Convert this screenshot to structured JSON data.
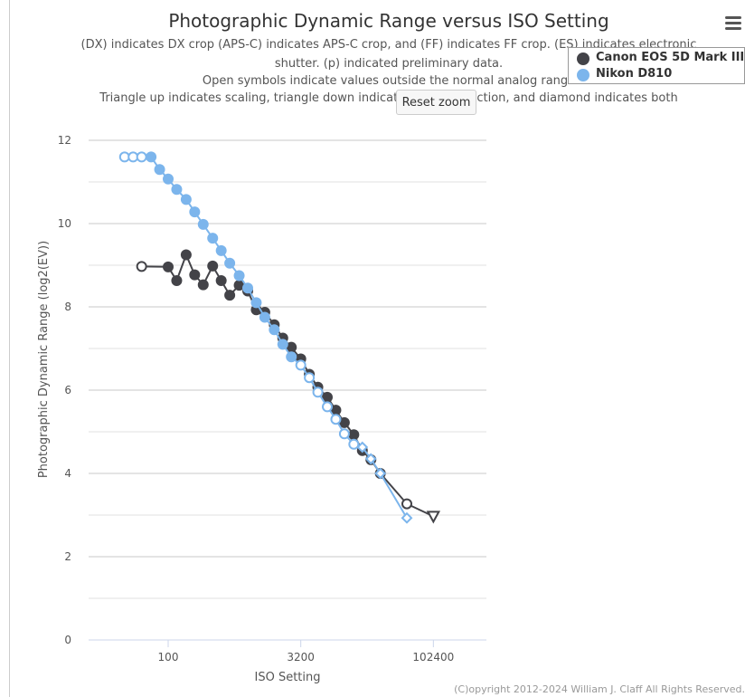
{
  "header": {
    "title": "Photographic Dynamic Range versus ISO Setting",
    "subtitle_lines": [
      "(DX) indicates DX crop (APS-C) indicates APS-C crop, and (FF) indicates FF crop. (ES) indicates electronic",
      "shutter. (p) indicated preliminary data.",
      "Open symbols indicate values outside the normal analog range",
      "Triangle up indicates scaling, triangle down indicates noise reduction, and diamond indicates both"
    ]
  },
  "controls": {
    "reset_zoom_label": "Reset zoom",
    "menu_icon": "hamburger-menu-icon"
  },
  "legend": {
    "items": [
      {
        "label": "Canon EOS 5D Mark III",
        "color": "#434348"
      },
      {
        "label": "Nikon D810",
        "color": "#7cb5ec"
      }
    ]
  },
  "credits": "(C)opyright 2012-2024 William J. Claff All Rights Reserved.",
  "chart_data": {
    "type": "scatter",
    "title": "Photographic Dynamic Range versus ISO Setting",
    "xlabel": "ISO Setting",
    "ylabel": "Photographic Dynamic Range (log2(EV))",
    "x_scale": "log2",
    "xlim": [
      12.5,
      409600
    ],
    "ylim": [
      0,
      12
    ],
    "x_ticks": [
      100,
      3200,
      102400
    ],
    "x_tick_labels": [
      "100",
      "3200",
      "102400"
    ],
    "y_ticks": [
      0,
      2,
      4,
      6,
      8,
      10,
      12
    ],
    "grid": true,
    "legend_position": "top-right",
    "series": [
      {
        "name": "Canon EOS 5D Mark III",
        "color": "#434348",
        "points": [
          {
            "x": 50,
            "y": 8.97,
            "marker": "circle-open"
          },
          {
            "x": 100,
            "y": 8.96,
            "marker": "circle"
          },
          {
            "x": 125,
            "y": 8.63,
            "marker": "circle"
          },
          {
            "x": 160,
            "y": 9.25,
            "marker": "circle"
          },
          {
            "x": 200,
            "y": 8.77,
            "marker": "circle"
          },
          {
            "x": 250,
            "y": 8.53,
            "marker": "circle"
          },
          {
            "x": 320,
            "y": 8.98,
            "marker": "circle"
          },
          {
            "x": 400,
            "y": 8.63,
            "marker": "circle"
          },
          {
            "x": 500,
            "y": 8.28,
            "marker": "circle"
          },
          {
            "x": 640,
            "y": 8.52,
            "marker": "circle"
          },
          {
            "x": 800,
            "y": 8.38,
            "marker": "circle"
          },
          {
            "x": 1000,
            "y": 7.93,
            "marker": "circle"
          },
          {
            "x": 1250,
            "y": 7.87,
            "marker": "circle"
          },
          {
            "x": 1600,
            "y": 7.57,
            "marker": "circle"
          },
          {
            "x": 2000,
            "y": 7.25,
            "marker": "circle"
          },
          {
            "x": 2500,
            "y": 7.03,
            "marker": "circle"
          },
          {
            "x": 3200,
            "y": 6.75,
            "marker": "circle"
          },
          {
            "x": 4000,
            "y": 6.38,
            "marker": "circle"
          },
          {
            "x": 5000,
            "y": 6.07,
            "marker": "circle"
          },
          {
            "x": 6400,
            "y": 5.83,
            "marker": "circle"
          },
          {
            "x": 8000,
            "y": 5.52,
            "marker": "circle"
          },
          {
            "x": 10000,
            "y": 5.22,
            "marker": "circle"
          },
          {
            "x": 12800,
            "y": 4.93,
            "marker": "circle"
          },
          {
            "x": 16000,
            "y": 4.55,
            "marker": "circle"
          },
          {
            "x": 20000,
            "y": 4.33,
            "marker": "circle"
          },
          {
            "x": 25600,
            "y": 4.0,
            "marker": "circle"
          },
          {
            "x": 51200,
            "y": 3.27,
            "marker": "circle-open"
          },
          {
            "x": 102400,
            "y": 2.97,
            "marker": "triangle-down-open"
          }
        ]
      },
      {
        "name": "Nikon D810",
        "color": "#7cb5ec",
        "points": [
          {
            "x": 32,
            "y": 11.6,
            "marker": "circle-open"
          },
          {
            "x": 40,
            "y": 11.6,
            "marker": "circle-open"
          },
          {
            "x": 50,
            "y": 11.6,
            "marker": "circle-open"
          },
          {
            "x": 64,
            "y": 11.6,
            "marker": "circle"
          },
          {
            "x": 80,
            "y": 11.3,
            "marker": "circle"
          },
          {
            "x": 100,
            "y": 11.07,
            "marker": "circle"
          },
          {
            "x": 125,
            "y": 10.82,
            "marker": "circle"
          },
          {
            "x": 160,
            "y": 10.58,
            "marker": "circle"
          },
          {
            "x": 200,
            "y": 10.28,
            "marker": "circle"
          },
          {
            "x": 250,
            "y": 9.98,
            "marker": "circle"
          },
          {
            "x": 320,
            "y": 9.65,
            "marker": "circle"
          },
          {
            "x": 400,
            "y": 9.35,
            "marker": "circle"
          },
          {
            "x": 500,
            "y": 9.05,
            "marker": "circle"
          },
          {
            "x": 640,
            "y": 8.75,
            "marker": "circle"
          },
          {
            "x": 800,
            "y": 8.45,
            "marker": "circle"
          },
          {
            "x": 1000,
            "y": 8.1,
            "marker": "circle"
          },
          {
            "x": 1250,
            "y": 7.75,
            "marker": "circle"
          },
          {
            "x": 1600,
            "y": 7.45,
            "marker": "circle"
          },
          {
            "x": 2000,
            "y": 7.1,
            "marker": "circle"
          },
          {
            "x": 2500,
            "y": 6.8,
            "marker": "circle"
          },
          {
            "x": 3200,
            "y": 6.6,
            "marker": "circle-open"
          },
          {
            "x": 4000,
            "y": 6.3,
            "marker": "circle-open"
          },
          {
            "x": 5000,
            "y": 5.95,
            "marker": "circle-open"
          },
          {
            "x": 6400,
            "y": 5.6,
            "marker": "circle-open"
          },
          {
            "x": 8000,
            "y": 5.3,
            "marker": "circle-open"
          },
          {
            "x": 10000,
            "y": 4.95,
            "marker": "circle-open"
          },
          {
            "x": 12800,
            "y": 4.7,
            "marker": "circle-open"
          },
          {
            "x": 16000,
            "y": 4.63,
            "marker": "diamond-open"
          },
          {
            "x": 20000,
            "y": 4.35,
            "marker": "diamond-open"
          },
          {
            "x": 25600,
            "y": 4.0,
            "marker": "diamond-open"
          },
          {
            "x": 51200,
            "y": 2.93,
            "marker": "diamond-open"
          }
        ]
      }
    ]
  }
}
